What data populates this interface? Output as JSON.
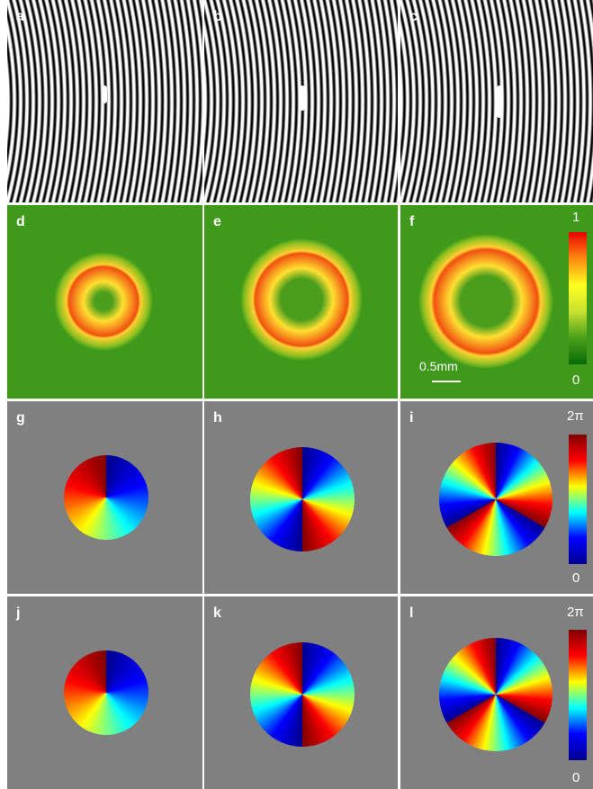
{
  "panels": [
    {
      "label": "a"
    },
    {
      "label": "b"
    },
    {
      "label": "c"
    },
    {
      "label": "d"
    },
    {
      "label": "e"
    },
    {
      "label": "f"
    },
    {
      "label": "g"
    },
    {
      "label": "h"
    },
    {
      "label": "i"
    },
    {
      "label": "j"
    },
    {
      "label": "k"
    },
    {
      "label": "l"
    }
  ],
  "colorbars": [
    {
      "max": "1",
      "min": "0"
    },
    {
      "max": "2π",
      "min": "0"
    },
    {
      "max": "2π",
      "min": "0"
    }
  ],
  "scale_bar": "0.5mm"
}
